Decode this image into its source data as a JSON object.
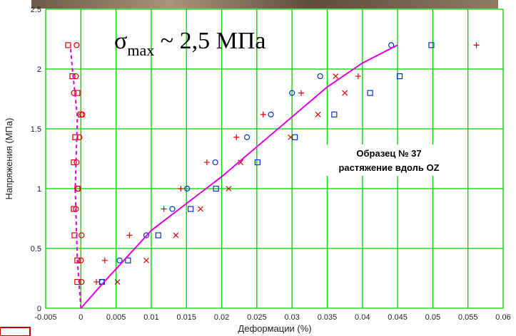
{
  "chart_data": {
    "type": "scatter",
    "title": [
      "σ",
      "max",
      " ~ 2,5 МПа"
    ],
    "annotation": [
      "Образец № 37",
      "растяжение вдоль OZ"
    ],
    "xlabel": "Деформации (%)",
    "ylabel": "Напряжения (МПа)",
    "xlim": [
      -0.005,
      0.06
    ],
    "ylim": [
      0,
      2.5
    ],
    "xticks": [
      -0.005,
      0,
      0.005,
      0.01,
      0.015,
      0.02,
      0.025,
      0.03,
      0.035,
      0.04,
      0.045,
      0.05,
      0.055,
      0.06
    ],
    "yticks": [
      0,
      0.5,
      1,
      1.5,
      2,
      2.5
    ],
    "grid": true,
    "grid_color": "#00cc00",
    "series": [
      {
        "marker": "plus",
        "color": "#e00000",
        "x": [
          0.0022,
          0.0034,
          0.0069,
          0.0118,
          0.0142,
          0.0179,
          0.0221,
          0.0259,
          0.0313,
          0.0394,
          0.0562
        ],
        "y": [
          0.22,
          0.4,
          0.61,
          0.83,
          1.0,
          1.22,
          1.43,
          1.62,
          1.8,
          1.94,
          2.2
        ]
      },
      {
        "marker": "x",
        "color": "#e00000",
        "x": [
          0.0052,
          0.0093,
          0.0135,
          0.017,
          0.021,
          0.0227,
          0.0298,
          0.0337,
          0.0375,
          0.0362
        ],
        "y": [
          0.22,
          0.4,
          0.61,
          0.83,
          1.0,
          1.22,
          1.43,
          1.62,
          1.8,
          1.94
        ]
      },
      {
        "marker": "circle",
        "color": "#0033cc",
        "x": [
          0.003,
          0.0055,
          0.0093,
          0.013,
          0.0151,
          0.0191,
          0.0236,
          0.027,
          0.03,
          0.034,
          0.0441
        ],
        "y": [
          0.22,
          0.4,
          0.61,
          0.83,
          1.0,
          1.22,
          1.43,
          1.62,
          1.8,
          1.94,
          2.2
        ]
      },
      {
        "marker": "square",
        "color": "#0033cc",
        "x": [
          0.003,
          0.0067,
          0.011,
          0.0156,
          0.0192,
          0.0251,
          0.0304,
          0.036,
          0.0411,
          0.0453,
          0.0498
        ],
        "y": [
          0.22,
          0.4,
          0.61,
          0.83,
          1.0,
          1.22,
          1.43,
          1.62,
          1.8,
          1.94,
          2.2
        ]
      },
      {
        "marker": "square",
        "color": "#e00000",
        "x": [
          -0.0005,
          -0.0005,
          -0.0009,
          -0.001,
          -0.0005,
          -0.001,
          -0.0008,
          0,
          -0.0005,
          -0.0012,
          -0.0018
        ],
        "y": [
          0.22,
          0.4,
          0.61,
          0.83,
          1.0,
          1.22,
          1.43,
          1.62,
          1.8,
          1.94,
          2.2
        ]
      },
      {
        "marker": "circle",
        "color": "#e00000",
        "x": [
          0.0001,
          0,
          0.0001,
          -0.0007,
          -0.0004,
          -0.0006,
          -0.0002,
          0.0002,
          -0.001,
          -0.0007,
          -0.0006
        ],
        "y": [
          0.22,
          0.4,
          0.61,
          0.83,
          1.0,
          1.22,
          1.43,
          1.62,
          1.8,
          1.94,
          2.2
        ]
      },
      {
        "marker": "line",
        "color": "#e000e0",
        "x": [
          0,
          0.003,
          0.01,
          0.02,
          0.03,
          0.035,
          0.04,
          0.045
        ],
        "y": [
          0,
          0.2,
          0.65,
          1.1,
          1.6,
          1.85,
          2.05,
          2.2
        ]
      },
      {
        "marker": "dashed",
        "color": "#e000e0",
        "x": [
          0,
          -0.0005,
          -0.0008,
          -0.0005,
          -0.0012,
          -0.0015
        ],
        "y": [
          0,
          0.4,
          1.0,
          1.6,
          2.0,
          2.2
        ]
      }
    ]
  }
}
